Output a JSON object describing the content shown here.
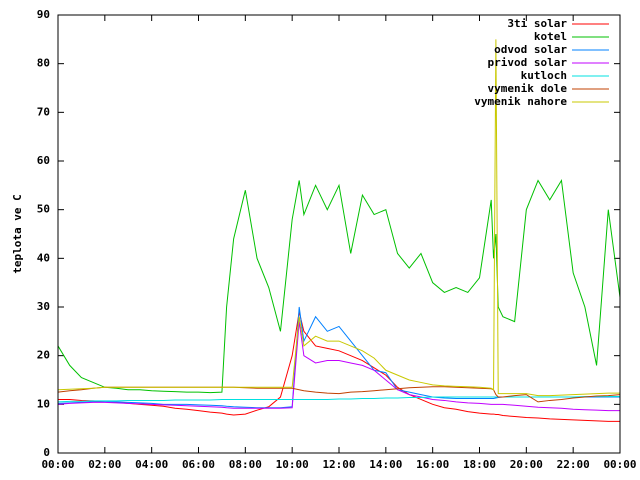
{
  "chart_data": {
    "type": "line",
    "ylabel": "teplota ve C",
    "xlim": [
      0,
      24
    ],
    "xticks": [
      {
        "value": 0,
        "label": "00:00"
      },
      {
        "value": 2,
        "label": "02:00"
      },
      {
        "value": 4,
        "label": "04:00"
      },
      {
        "value": 6,
        "label": "06:00"
      },
      {
        "value": 8,
        "label": "08:00"
      },
      {
        "value": 10,
        "label": "10:00"
      },
      {
        "value": 12,
        "label": "12:00"
      },
      {
        "value": 14,
        "label": "14:00"
      },
      {
        "value": 16,
        "label": "16:00"
      },
      {
        "value": 18,
        "label": "18:00"
      },
      {
        "value": 20,
        "label": "20:00"
      },
      {
        "value": 22,
        "label": "22:00"
      },
      {
        "value": 24,
        "label": "00:00"
      }
    ],
    "ylim": [
      0,
      90
    ],
    "yticks": [
      0,
      10,
      20,
      30,
      40,
      50,
      60,
      70,
      80,
      90
    ],
    "legend": "top-right",
    "x": [
      0,
      0.5,
      1,
      1.5,
      2,
      2.5,
      3,
      3.5,
      4,
      4.5,
      5,
      5.5,
      6,
      6.5,
      7,
      7.2,
      7.5,
      8,
      8.5,
      9,
      9.5,
      10,
      10.3,
      10.5,
      11,
      11.5,
      12,
      12.5,
      13,
      13.5,
      14,
      14.5,
      15,
      15.5,
      16,
      16.5,
      17,
      17.5,
      18,
      18.5,
      18.6,
      18.7,
      18.8,
      19,
      19.5,
      20,
      20.5,
      21,
      21.5,
      22,
      22.5,
      23,
      23.5,
      24
    ],
    "series": [
      {
        "name": "3ti solar",
        "color": "#ff0000",
        "values": [
          11,
          11,
          10.8,
          10.7,
          10.5,
          10.4,
          10.2,
          10,
          9.8,
          9.6,
          9.2,
          9,
          8.7,
          8.4,
          8.2,
          8,
          7.8,
          8,
          8.8,
          9.5,
          11.5,
          20,
          29,
          25,
          22,
          21.5,
          21,
          20,
          19,
          17.5,
          16,
          13.5,
          12,
          11,
          10,
          9.3,
          9,
          8.5,
          8.2,
          8,
          8,
          7.9,
          7.9,
          7.7,
          7.5,
          7.3,
          7.2,
          7,
          6.9,
          6.8,
          6.7,
          6.6,
          6.5,
          6.5
        ]
      },
      {
        "name": "kotel",
        "color": "#00c000",
        "values": [
          22,
          18,
          15.5,
          14.5,
          13.5,
          13.3,
          13,
          13,
          12.8,
          12.7,
          12.6,
          12.5,
          12.5,
          12.4,
          12.5,
          30,
          44,
          54,
          40,
          34,
          25,
          48,
          56,
          49,
          55,
          50,
          55,
          41,
          53,
          49,
          50,
          41,
          38,
          41,
          35,
          33,
          34,
          33,
          36,
          52,
          40,
          45,
          30,
          28,
          27,
          50,
          56,
          52,
          56,
          37,
          30,
          18,
          50,
          32
        ]
      },
      {
        "name": "odvod solar",
        "color": "#0080ff",
        "values": [
          10.2,
          10.3,
          10.4,
          10.5,
          10.5,
          10.5,
          10.4,
          10.3,
          10.2,
          10,
          10,
          10,
          9.9,
          9.8,
          9.7,
          9.6,
          9.5,
          9.4,
          9.3,
          9.3,
          9.3,
          9.5,
          30,
          23,
          28,
          25,
          26,
          23,
          20,
          17,
          16.5,
          13,
          12.5,
          12,
          11.5,
          11.3,
          11.2,
          11.2,
          11.2,
          11.2,
          11.2,
          11.3,
          11.4,
          11.5,
          11.5,
          11.5,
          11.5,
          11.5,
          11.5,
          11.5,
          11.5,
          11.5,
          11.5,
          11.5
        ]
      },
      {
        "name": "privod solar",
        "color": "#c000ff",
        "values": [
          10,
          10.2,
          10.3,
          10.4,
          10.4,
          10.3,
          10.2,
          10.1,
          10,
          9.9,
          9.8,
          9.7,
          9.6,
          9.5,
          9.4,
          9.3,
          9.2,
          9.2,
          9.2,
          9.2,
          9.2,
          9.3,
          27,
          20,
          18.5,
          19,
          19,
          18.5,
          18,
          17,
          15,
          13,
          12,
          11.5,
          11,
          10.8,
          10.5,
          10.3,
          10.2,
          10,
          10,
          10,
          10,
          10,
          9.8,
          9.6,
          9.4,
          9.3,
          9.2,
          9,
          8.9,
          8.8,
          8.7,
          8.7
        ]
      },
      {
        "name": "kutloch",
        "color": "#00e0e0",
        "values": [
          10.5,
          10.6,
          10.6,
          10.7,
          10.7,
          10.7,
          10.8,
          10.8,
          10.8,
          10.8,
          10.9,
          10.9,
          10.9,
          10.9,
          11,
          11,
          11,
          11,
          11,
          11,
          11,
          11,
          11,
          11,
          11,
          11,
          11.1,
          11.1,
          11.2,
          11.2,
          11.3,
          11.3,
          11.4,
          11.4,
          11.5,
          11.5,
          11.5,
          11.5,
          11.5,
          11.5,
          11.5,
          11.5,
          11.5,
          11.5,
          11.5,
          11.5,
          11.5,
          11.5,
          11.5,
          11.5,
          11.6,
          11.6,
          11.6,
          11.6
        ]
      },
      {
        "name": "vymenik dole",
        "color": "#c04000",
        "values": [
          12.5,
          12.8,
          13,
          13.3,
          13.5,
          13.5,
          13.5,
          13.5,
          13.5,
          13.5,
          13.5,
          13.5,
          13.5,
          13.5,
          13.5,
          13.5,
          13.5,
          13.4,
          13.3,
          13.3,
          13.3,
          13.3,
          13,
          12.8,
          12.5,
          12.3,
          12.2,
          12.5,
          12.6,
          12.8,
          13,
          13.2,
          13.4,
          13.5,
          13.6,
          13.6,
          13.5,
          13.4,
          13.3,
          13.2,
          13,
          12,
          11.5,
          11.5,
          11.8,
          12,
          10.5,
          10.8,
          11,
          11.3,
          11.5,
          11.7,
          11.8,
          12
        ]
      },
      {
        "name": "vymenik nahore",
        "color": "#c8c800",
        "values": [
          13,
          13.1,
          13.2,
          13.3,
          13.5,
          13.5,
          13.5,
          13.5,
          13.5,
          13.5,
          13.5,
          13.5,
          13.5,
          13.5,
          13.5,
          13.5,
          13.5,
          13.5,
          13.5,
          13.5,
          13.5,
          13.5,
          28,
          22,
          24,
          23,
          23,
          22,
          21,
          19.5,
          17,
          16,
          15,
          14.5,
          14,
          13.8,
          13.7,
          13.6,
          13.5,
          13.3,
          13,
          85,
          12.2,
          12.2,
          12.2,
          12.2,
          11.8,
          11.8,
          11.9,
          12,
          12.1,
          12.2,
          12.3,
          12.3
        ]
      }
    ]
  }
}
